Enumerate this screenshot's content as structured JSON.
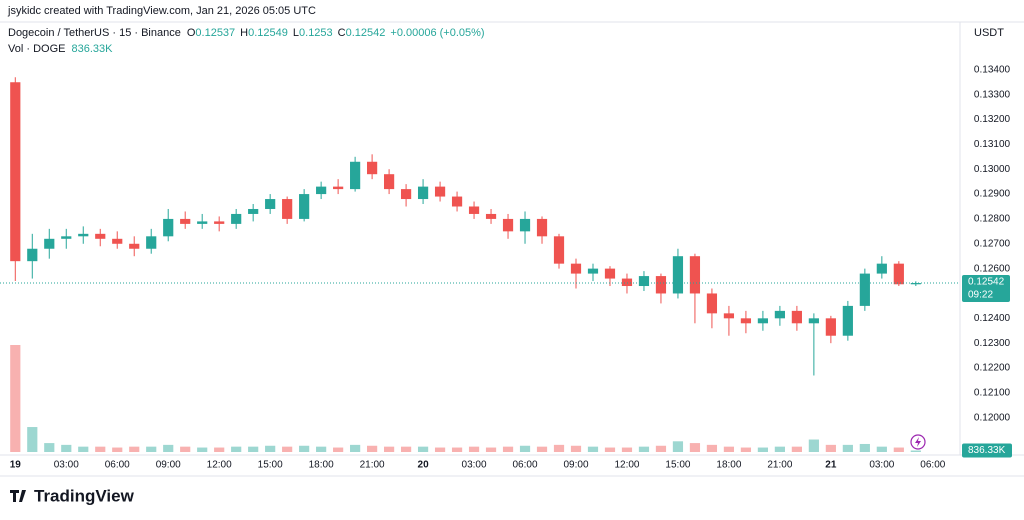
{
  "header": {
    "credit": "jsykidc created with TradingView.com, Jan 21, 2026 05:05 UTC",
    "logo": "TradingView"
  },
  "chart_data": {
    "type": "candlestick",
    "title": "Dogecoin / TetherUS · 15 · Binance",
    "ohlc_labels": [
      "O",
      "H",
      "L",
      "C"
    ],
    "change_label": "+0.00006 (+0.05%)",
    "y_unit": "USDT",
    "countdown": "09:22",
    "up_color": "#26a69a",
    "down_color": "#ef5350",
    "grid": false,
    "x": [
      0,
      1,
      2,
      3,
      4,
      5,
      6,
      7,
      8,
      9,
      10,
      11,
      12,
      13,
      14,
      15,
      16,
      17,
      18,
      19,
      20,
      21,
      22,
      23,
      24,
      25,
      26,
      27,
      28,
      29,
      30,
      31,
      32,
      33,
      34,
      35,
      36,
      37,
      38,
      39,
      40,
      41,
      42,
      43,
      44,
      45,
      46,
      47,
      48,
      49,
      50,
      51,
      52,
      53
    ],
    "open": [
      0.1335,
      0.1263,
      0.1268,
      0.1272,
      0.1273,
      0.1274,
      0.1272,
      0.127,
      0.1268,
      0.1273,
      0.128,
      0.1278,
      0.1279,
      0.1278,
      0.1282,
      0.1284,
      0.1288,
      0.128,
      0.129,
      0.1293,
      0.1292,
      0.1303,
      0.1298,
      0.1292,
      0.1288,
      0.1293,
      0.1289,
      0.1285,
      0.1282,
      0.128,
      0.1275,
      0.128,
      0.1273,
      0.1262,
      0.1258,
      0.126,
      0.1256,
      0.1253,
      0.1257,
      0.125,
      0.1265,
      0.125,
      0.1242,
      0.124,
      0.1238,
      0.124,
      0.1243,
      0.1238,
      0.124,
      0.1233,
      0.1245,
      0.1258,
      0.1262,
      0.12537
    ],
    "high": [
      0.1337,
      0.1274,
      0.1276,
      0.1276,
      0.1277,
      0.1276,
      0.1275,
      0.1273,
      0.1276,
      0.1284,
      0.1283,
      0.1282,
      0.1281,
      0.1284,
      0.1286,
      0.129,
      0.1289,
      0.1292,
      0.1295,
      0.1296,
      0.1305,
      0.1306,
      0.13,
      0.1294,
      0.1296,
      0.1295,
      0.1291,
      0.1287,
      0.1284,
      0.1282,
      0.1283,
      0.1281,
      0.1274,
      0.1264,
      0.1262,
      0.1261,
      0.1258,
      0.1259,
      0.1258,
      0.1268,
      0.1266,
      0.1252,
      0.1245,
      0.1243,
      0.1243,
      0.1245,
      0.1245,
      0.1242,
      0.1241,
      0.1247,
      0.126,
      0.1265,
      0.1263,
      0.12549
    ],
    "low": [
      0.1255,
      0.1256,
      0.1264,
      0.1268,
      0.127,
      0.1269,
      0.1268,
      0.1265,
      0.1266,
      0.1271,
      0.1276,
      0.1276,
      0.1275,
      0.1276,
      0.1279,
      0.1282,
      0.1278,
      0.1279,
      0.1288,
      0.129,
      0.1291,
      0.1296,
      0.129,
      0.1285,
      0.1286,
      0.1287,
      0.1283,
      0.128,
      0.1278,
      0.1272,
      0.127,
      0.127,
      0.126,
      0.1252,
      0.1255,
      0.1253,
      0.125,
      0.1251,
      0.1246,
      0.1248,
      0.1238,
      0.1236,
      0.1233,
      0.1234,
      0.1235,
      0.1237,
      0.1235,
      0.1217,
      0.123,
      0.1231,
      0.1243,
      0.1256,
      0.1253,
      0.1253
    ],
    "close": [
      0.1263,
      0.1268,
      0.1272,
      0.1273,
      0.1274,
      0.1272,
      0.127,
      0.1268,
      0.1273,
      0.128,
      0.1278,
      0.1279,
      0.1278,
      0.1282,
      0.1284,
      0.1288,
      0.128,
      0.129,
      0.1293,
      0.1292,
      0.1303,
      0.1298,
      0.1292,
      0.1288,
      0.1293,
      0.1289,
      0.1285,
      0.1282,
      0.128,
      0.1275,
      0.128,
      0.1273,
      0.1262,
      0.1258,
      0.126,
      0.1256,
      0.1253,
      0.1257,
      0.125,
      0.1265,
      0.125,
      0.1242,
      0.124,
      0.1238,
      0.124,
      0.1243,
      0.1238,
      0.124,
      0.1233,
      0.1245,
      0.1258,
      0.1262,
      0.12537,
      0.12542
    ],
    "volume": {
      "name": "Vol · DOGE",
      "values": [
        60000000,
        14000000,
        5000000,
        4000000,
        3000000,
        3000000,
        2500000,
        3000000,
        3000000,
        4000000,
        3000000,
        2500000,
        2500000,
        3000000,
        3000000,
        3500000,
        3000000,
        3500000,
        3000000,
        2500000,
        4000000,
        3500000,
        3000000,
        3000000,
        3000000,
        2500000,
        2500000,
        3000000,
        2500000,
        3000000,
        3500000,
        3000000,
        4000000,
        3500000,
        3000000,
        2500000,
        2500000,
        3000000,
        3500000,
        6000000,
        5000000,
        4000000,
        3000000,
        2500000,
        2500000,
        3000000,
        3000000,
        7000000,
        4000000,
        4000000,
        4500000,
        3000000,
        2500000,
        836330
      ],
      "value_labels": [
        null,
        null,
        null,
        null,
        null,
        null,
        null,
        null,
        null,
        null,
        null,
        null,
        null,
        null,
        null,
        null,
        null,
        null,
        null,
        null,
        null,
        null,
        null,
        null,
        null,
        null,
        null,
        null,
        null,
        null,
        null,
        null,
        null,
        null,
        null,
        null,
        null,
        null,
        null,
        null,
        null,
        null,
        null,
        null,
        null,
        null,
        null,
        null,
        null,
        null,
        null,
        null,
        null,
        "836.33K"
      ]
    },
    "xlim": [
      -0.9,
      55.6
    ],
    "ylim": [
      0.1185,
      0.1352
    ],
    "xticks": [
      {
        "value": 0,
        "label": "19"
      },
      {
        "value": 3,
        "label": "03:00"
      },
      {
        "value": 6,
        "label": "06:00"
      },
      {
        "value": 9,
        "label": "09:00"
      },
      {
        "value": 12,
        "label": "12:00"
      },
      {
        "value": 15,
        "label": "15:00"
      },
      {
        "value": 18,
        "label": "18:00"
      },
      {
        "value": 21,
        "label": "21:00"
      },
      {
        "value": 24,
        "label": "20"
      },
      {
        "value": 27,
        "label": "03:00"
      },
      {
        "value": 30,
        "label": "06:00"
      },
      {
        "value": 33,
        "label": "09:00"
      },
      {
        "value": 36,
        "label": "12:00"
      },
      {
        "value": 39,
        "label": "15:00"
      },
      {
        "value": 42,
        "label": "18:00"
      },
      {
        "value": 45,
        "label": "21:00"
      },
      {
        "value": 48,
        "label": "21"
      },
      {
        "value": 51,
        "label": "03:00"
      },
      {
        "value": 54,
        "label": "06:00"
      }
    ],
    "yticks": [
      {
        "value": 0.12,
        "label": "0.12000"
      },
      {
        "value": 0.121,
        "label": "0.12100"
      },
      {
        "value": 0.122,
        "label": "0.12200"
      },
      {
        "value": 0.123,
        "label": "0.12300"
      },
      {
        "value": 0.124,
        "label": "0.12400"
      },
      {
        "value": 0.125,
        "label": "0.12500"
      },
      {
        "value": 0.126,
        "label": "0.12600"
      },
      {
        "value": 0.127,
        "label": "0.12700"
      },
      {
        "value": 0.128,
        "label": "0.12800"
      },
      {
        "value": 0.129,
        "label": "0.12900"
      },
      {
        "value": 0.13,
        "label": "0.13000"
      },
      {
        "value": 0.131,
        "label": "0.13100"
      },
      {
        "value": 0.132,
        "label": "0.13200"
      },
      {
        "value": 0.133,
        "label": "0.13300"
      },
      {
        "value": 0.134,
        "label": "0.13400"
      }
    ]
  }
}
